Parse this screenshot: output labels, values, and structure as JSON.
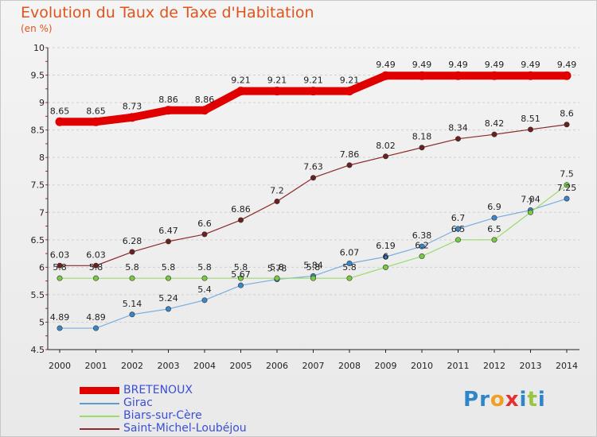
{
  "chart_data": {
    "type": "line",
    "title": "Evolution du Taux de Taxe d'Habitation",
    "subtitle": "(en %)",
    "categories": [
      "2000",
      "2001",
      "2002",
      "2003",
      "2004",
      "2005",
      "2006",
      "2007",
      "2008",
      "2009",
      "2010",
      "2011",
      "2012",
      "2013",
      "2014"
    ],
    "ylim": [
      4.5,
      10
    ],
    "yticks": [
      "4.5",
      "5",
      "5.5",
      "6",
      "6.5",
      "7",
      "7.5",
      "8",
      "8.5",
      "9",
      "9.5",
      "10"
    ],
    "grid": "horizontal dashed",
    "legend_position": "bottom-left",
    "series": [
      {
        "name": "BRETENOUX",
        "color": "#e00000",
        "values": [
          8.65,
          8.65,
          8.73,
          8.86,
          8.86,
          9.21,
          9.21,
          9.21,
          9.21,
          9.49,
          9.49,
          9.49,
          9.49,
          9.49,
          9.49
        ],
        "labels": [
          "8.65",
          "8.65",
          "8.73",
          "8.86",
          "8.86",
          "9.21",
          "9.21",
          "9.21",
          "9.21",
          "9.49",
          "9.49",
          "9.49",
          "9.49",
          "9.49",
          "9.49"
        ]
      },
      {
        "name": "Girac",
        "color": "#5b9bd5",
        "values": [
          4.89,
          4.89,
          5.14,
          5.24,
          5.4,
          5.67,
          5.78,
          5.84,
          6.07,
          6.19,
          6.38,
          6.7,
          6.9,
          7.04,
          7.25
        ],
        "labels": [
          "4.89",
          "4.89",
          "5.14",
          "5.24",
          "5.4",
          "5.67",
          "5.78",
          "5.84",
          "6.07",
          "6.19",
          "6.38",
          "6.7",
          "6.9",
          "7.04",
          "7.25"
        ]
      },
      {
        "name": "Biars-sur-Cère",
        "color": "#9bdc6c",
        "values": [
          5.8,
          5.8,
          5.8,
          5.8,
          5.8,
          5.8,
          5.8,
          5.8,
          5.8,
          6.0,
          6.2,
          6.5,
          6.5,
          7.0,
          7.5
        ],
        "labels": [
          "5.8",
          "5.8",
          "5.8",
          "5.8",
          "5.8",
          "5.8",
          "5.8",
          "5.8",
          "5.8",
          "6",
          "6.2",
          "6.5",
          "6.5",
          "7",
          "7.5"
        ]
      },
      {
        "name": "Saint-Michel-Loubéjou",
        "color": "#8b2a2a",
        "values": [
          6.03,
          6.03,
          6.28,
          6.47,
          6.6,
          6.86,
          7.2,
          7.63,
          7.86,
          8.02,
          8.18,
          8.34,
          8.42,
          8.51,
          8.6
        ],
        "labels": [
          "6.03",
          "6.03",
          "6.28",
          "6.47",
          "6.6",
          "6.86",
          "7.2",
          "7.63",
          "7.86",
          "8.02",
          "8.18",
          "8.34",
          "8.42",
          "8.51",
          "8.6"
        ]
      }
    ]
  },
  "legend": {
    "items": [
      {
        "label": "BRETENOUX",
        "color": "#e00000"
      },
      {
        "label": "Girac",
        "color": "#5b9bd5"
      },
      {
        "label": "Biars-sur-Cère",
        "color": "#9bdc6c"
      },
      {
        "label": "Saint-Michel-Loubéjou",
        "color": "#8b2a2a"
      }
    ]
  },
  "logo": {
    "text": "Proxiti",
    "letter_colors": [
      "#2e86c8",
      "#2e86c8",
      "#f0a020",
      "#e53030",
      "#2e86c8",
      "#9bc53d",
      "#2e86c8"
    ]
  }
}
